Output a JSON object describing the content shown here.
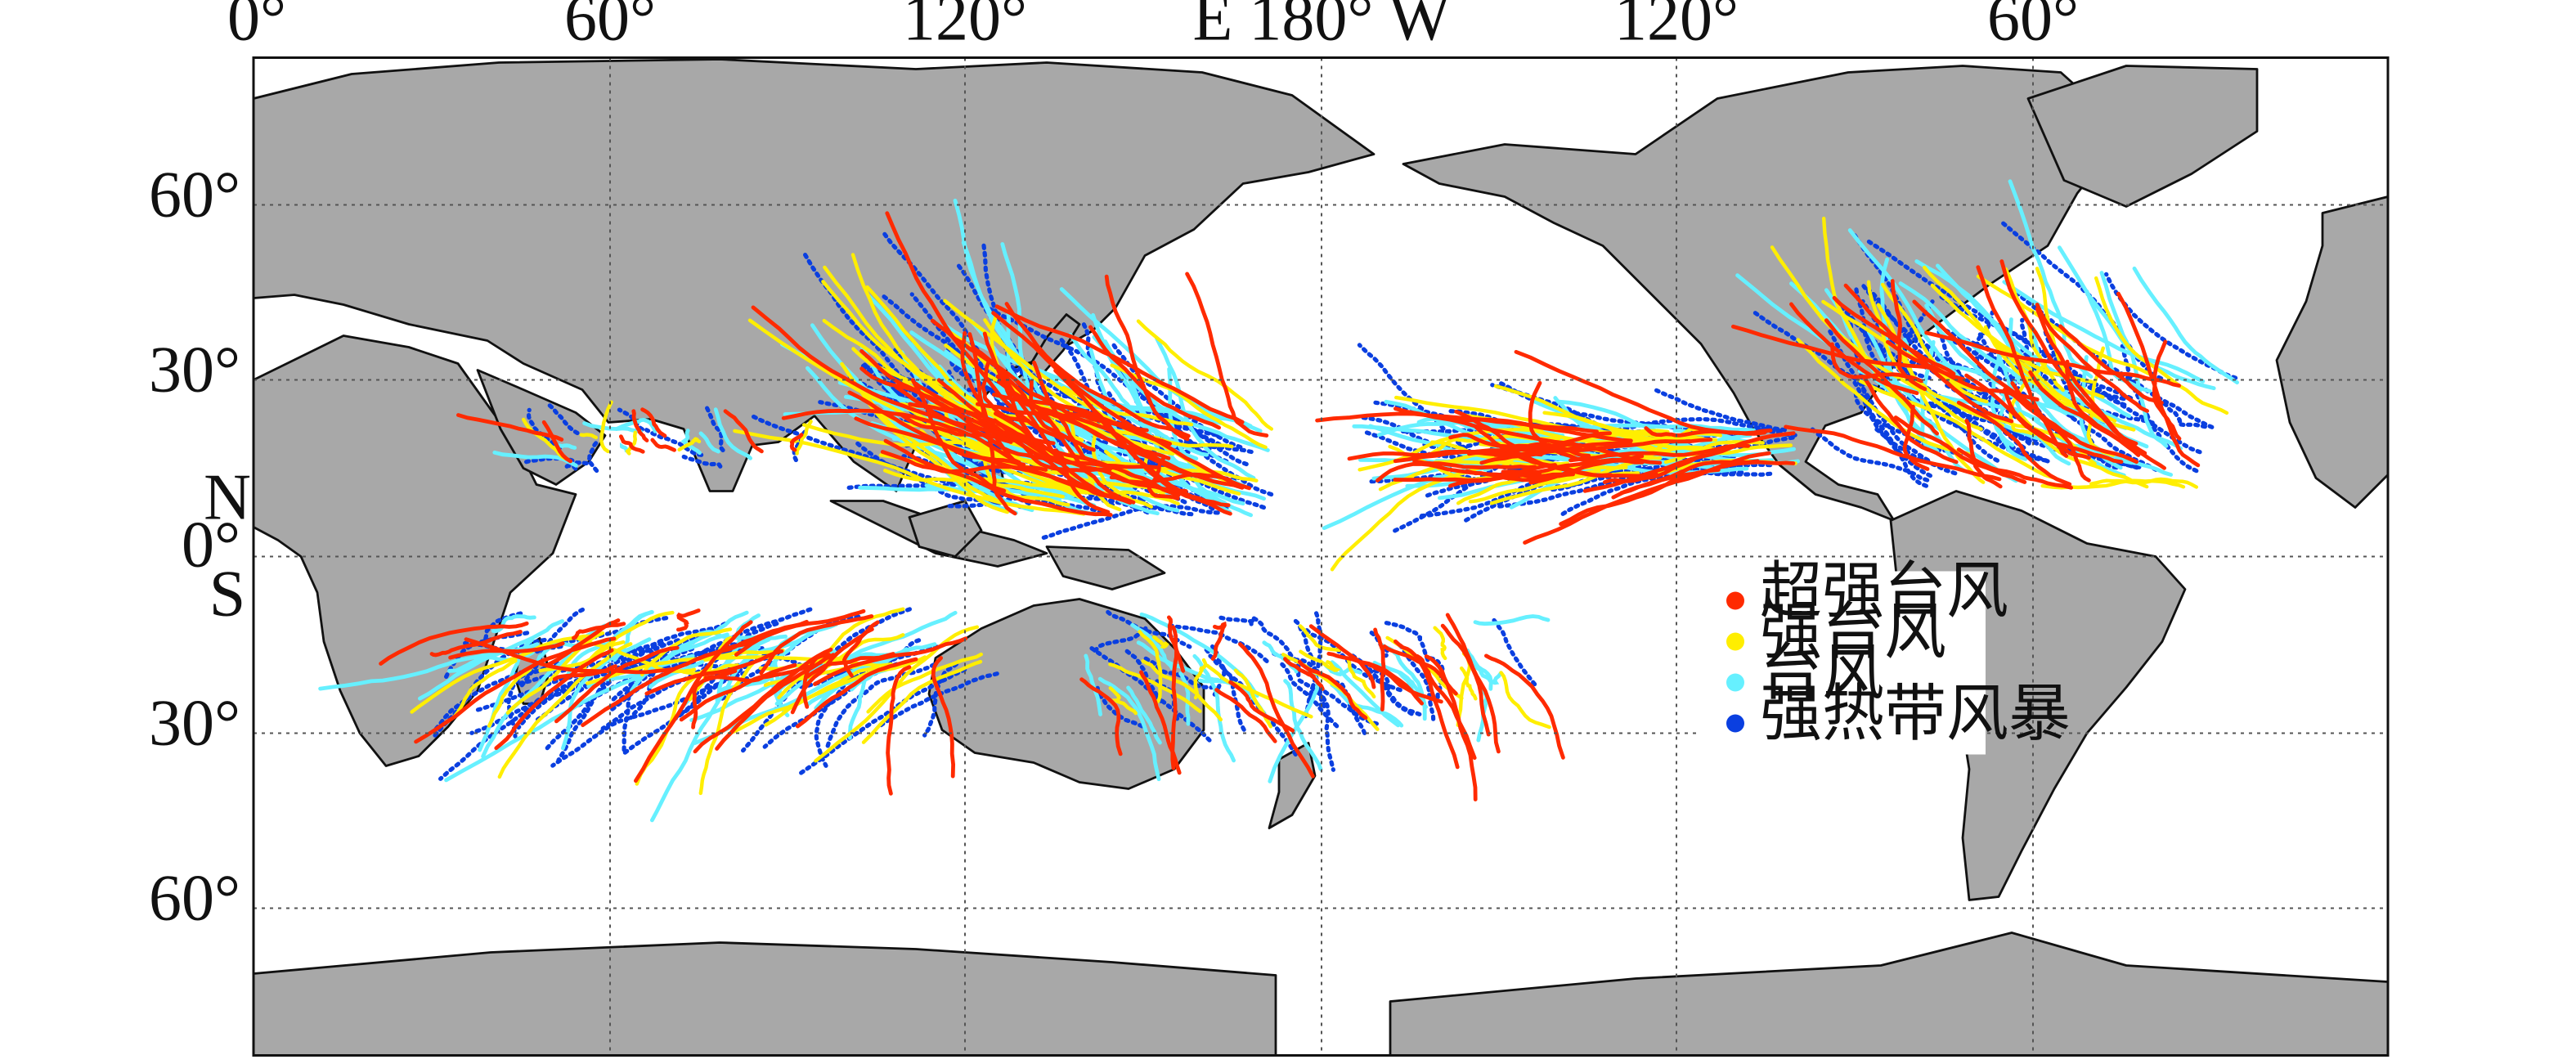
{
  "map": {
    "top_axis_labels": [
      "0°",
      "60°",
      "120°",
      "E 180° W",
      "120°",
      "60°"
    ],
    "left_axis_labels": [
      "60°",
      "30°",
      "N",
      "0°",
      "S",
      "30°",
      "60°"
    ],
    "legend": [
      {
        "label": "超强台风",
        "color": "#ff2a00"
      },
      {
        "label": "强台风",
        "color": "#ffee00"
      },
      {
        "label": "台风",
        "color": "#66f0ff"
      },
      {
        "label": "强热带风暴",
        "color": "#0a3fe0"
      }
    ],
    "colors": {
      "land": "#a8a8a8",
      "ocean": "#ffffff",
      "grid": "#555555",
      "super_typhoon": "#ff2a00",
      "severe_typhoon": "#ffee00",
      "typhoon": "#66f0ff",
      "severe_tropical_storm": "#0a3fe0"
    }
  }
}
